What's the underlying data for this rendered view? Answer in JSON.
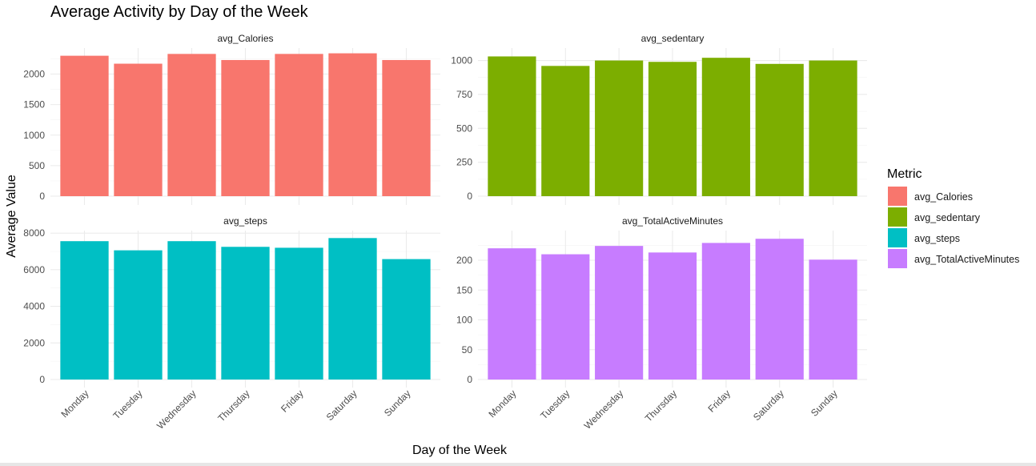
{
  "chart_data": {
    "type": "bar",
    "title": "Average Activity by Day of the Week",
    "xlabel": "Day of the Week",
    "ylabel": "Average Value",
    "categories": [
      "Monday",
      "Tuesday",
      "Wednesday",
      "Thursday",
      "Friday",
      "Saturday",
      "Sunday"
    ],
    "legend": {
      "title": "Metric",
      "position": "right",
      "entries": [
        "avg_Calories",
        "avg_sedentary",
        "avg_steps",
        "avg_TotalActiveMinutes"
      ]
    },
    "facets": "2x2, x shared per column, free y scales",
    "grid": true,
    "panels": [
      {
        "name": "avg_Calories",
        "color": "#F8766D",
        "values": [
          2300,
          2170,
          2330,
          2230,
          2330,
          2340,
          2230
        ],
        "ylim": [
          0,
          2400
        ],
        "yticks": [
          0,
          500,
          1000,
          1500,
          2000
        ]
      },
      {
        "name": "avg_sedentary",
        "color": "#7CAE00",
        "values": [
          1030,
          960,
          1000,
          990,
          1020,
          975,
          1000
        ],
        "ylim": [
          0,
          1080
        ],
        "yticks": [
          0,
          250,
          500,
          750,
          1000
        ]
      },
      {
        "name": "avg_steps",
        "color": "#00BFC4",
        "values": [
          7560,
          7060,
          7560,
          7250,
          7200,
          7730,
          6580
        ],
        "ylim": [
          0,
          8050
        ],
        "yticks": [
          0,
          2000,
          4000,
          6000,
          8000
        ]
      },
      {
        "name": "avg_TotalActiveMinutes",
        "color": "#C77CFF",
        "values": [
          220,
          210,
          224,
          213,
          229,
          236,
          201
        ],
        "ylim": [
          0,
          247
        ],
        "yticks": [
          0,
          50,
          100,
          150,
          200
        ]
      }
    ]
  }
}
